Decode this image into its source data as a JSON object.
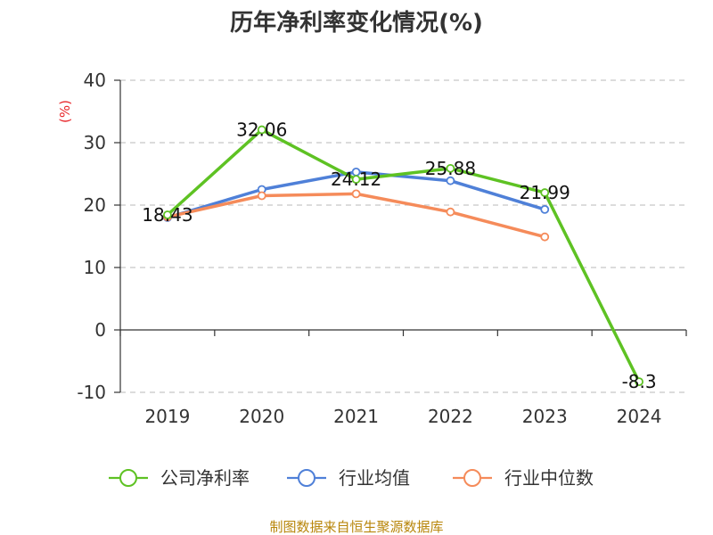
{
  "chart_data": {
    "type": "line",
    "title": "历年净利率变化情况(%)",
    "ylabel": "(%)",
    "xlabel": "",
    "categories": [
      "2019",
      "2020",
      "2021",
      "2022",
      "2023",
      "2024"
    ],
    "yticks": [
      "-10",
      "0",
      "10",
      "20",
      "30",
      "40"
    ],
    "ylim": [
      -10,
      40
    ],
    "grid": true,
    "legend_position": "bottom",
    "series": [
      {
        "name": "公司净利率",
        "color": "#5ec223",
        "values": [
          18.43,
          32.06,
          24.12,
          25.88,
          21.99,
          -8.3
        ],
        "labels": [
          "18.43",
          "32.06",
          "24.12",
          "25.88",
          "21.99",
          "-8.3"
        ]
      },
      {
        "name": "行业均值",
        "color": "#4f80d8",
        "values": [
          18.0,
          22.5,
          25.3,
          23.9,
          19.3,
          null
        ]
      },
      {
        "name": "行业中位数",
        "color": "#f58b5a",
        "values": [
          18.1,
          21.5,
          21.8,
          18.9,
          14.9,
          null
        ]
      }
    ],
    "source": "制图数据来自恒生聚源数据库"
  }
}
